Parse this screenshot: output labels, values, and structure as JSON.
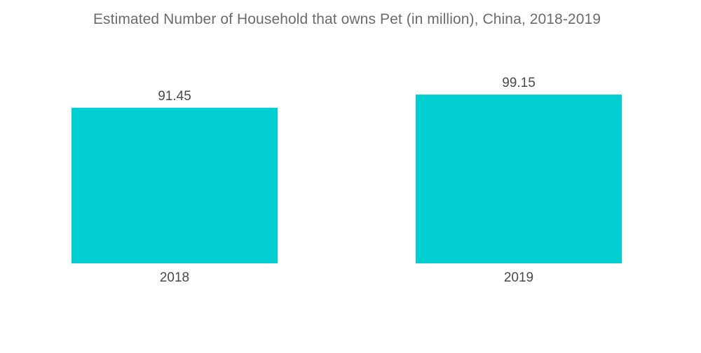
{
  "chart_data": {
    "type": "bar",
    "title": "Estimated Number of Household that owns Pet (in million), China, 2018-2019",
    "categories": [
      "2018",
      "2019"
    ],
    "values": [
      91.45,
      99.15
    ],
    "value_labels": [
      "91.45",
      "99.15"
    ],
    "bar_color": "#00ced1",
    "ylim": [
      0,
      100
    ],
    "xlabel": "",
    "ylabel": "",
    "grid": false,
    "legend": "none"
  }
}
